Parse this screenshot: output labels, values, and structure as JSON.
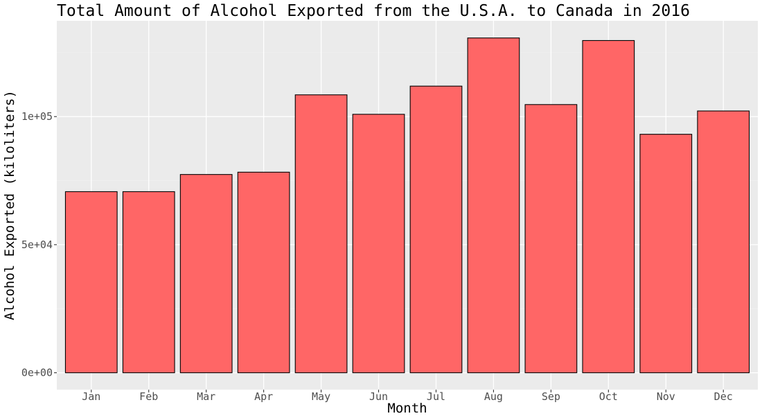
{
  "chart_data": {
    "type": "bar",
    "title": "Total Amount of Alcohol Exported from the U.S.A. to Canada in 2016",
    "xlabel": "Month",
    "ylabel": "Alcohol Exported (kiloliters)",
    "categories": [
      "Jan",
      "Feb",
      "Mar",
      "Apr",
      "May",
      "Jun",
      "Jul",
      "Aug",
      "Sep",
      "Oct",
      "Nov",
      "Dec"
    ],
    "values": [
      70700,
      70700,
      77400,
      78300,
      108500,
      100900,
      111900,
      130700,
      104700,
      129700,
      93100,
      102200
    ],
    "y_ticks": [
      {
        "value": 0,
        "label": "0e+00"
      },
      {
        "value": 50000,
        "label": "5e+04"
      },
      {
        "value": 100000,
        "label": "1e+05"
      }
    ],
    "ylim": [
      -6600,
      137400
    ],
    "grid": true,
    "legend": "none",
    "colors": {
      "panel_background": "#ebebeb",
      "grid_major": "#ffffff",
      "grid_minor": "#f2f2f2",
      "bar_fill": "#ff6666",
      "bar_outline": "#000000",
      "tick_mark": "#333333"
    }
  }
}
